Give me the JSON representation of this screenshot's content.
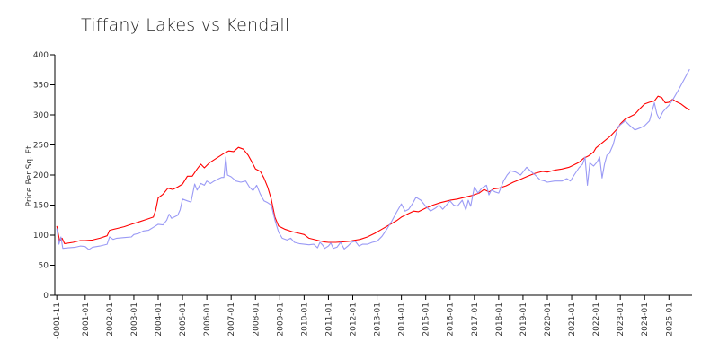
{
  "chart_data": {
    "type": "line",
    "title": "Tiffany Lakes vs Kendall",
    "xlabel": "",
    "ylabel": "Price Per Sq. Ft.",
    "ylim": [
      0,
      400
    ],
    "yticks": [
      0,
      50,
      100,
      150,
      200,
      250,
      300,
      350,
      400
    ],
    "xlim": [
      -0.25,
      25.95
    ],
    "xticks": [
      {
        "label": "-0001-11",
        "t": -0.17
      },
      {
        "label": "2001-01",
        "t": 1
      },
      {
        "label": "2002-01",
        "t": 2
      },
      {
        "label": "2003-01",
        "t": 3
      },
      {
        "label": "2004-01",
        "t": 4
      },
      {
        "label": "2005-01",
        "t": 5
      },
      {
        "label": "2006-01",
        "t": 6
      },
      {
        "label": "2007-01",
        "t": 7
      },
      {
        "label": "2008-01",
        "t": 8
      },
      {
        "label": "2009-01",
        "t": 9
      },
      {
        "label": "2010-01",
        "t": 10
      },
      {
        "label": "2011-01",
        "t": 11
      },
      {
        "label": "2012-01",
        "t": 12
      },
      {
        "label": "2013-01",
        "t": 13
      },
      {
        "label": "2014-01",
        "t": 14
      },
      {
        "label": "2015-01",
        "t": 15
      },
      {
        "label": "2016-01",
        "t": 16
      },
      {
        "label": "2017-01",
        "t": 17
      },
      {
        "label": "2018-01",
        "t": 18
      },
      {
        "label": "2019-01",
        "t": 19
      },
      {
        "label": "2020-01",
        "t": 20
      },
      {
        "label": "2021-01",
        "t": 21
      },
      {
        "label": "2022-01",
        "t": 22
      },
      {
        "label": "2023-01",
        "t": 23
      },
      {
        "label": "2024-01",
        "t": 24
      },
      {
        "label": "2025-01",
        "t": 25
      }
    ],
    "series": [
      {
        "name": "Kendall",
        "color": "#ff0000",
        "points": [
          [
            -0.17,
            115
          ],
          [
            -0.05,
            90
          ],
          [
            0.05,
            95
          ],
          [
            0.15,
            86
          ],
          [
            0.5,
            88
          ],
          [
            0.8,
            91
          ],
          [
            1.0,
            91
          ],
          [
            1.3,
            92
          ],
          [
            1.6,
            95
          ],
          [
            1.9,
            99
          ],
          [
            2.0,
            108
          ],
          [
            2.3,
            111
          ],
          [
            2.6,
            114
          ],
          [
            2.9,
            118
          ],
          [
            3.2,
            122
          ],
          [
            3.5,
            126
          ],
          [
            3.8,
            130
          ],
          [
            3.9,
            142
          ],
          [
            4.0,
            162
          ],
          [
            4.2,
            168
          ],
          [
            4.4,
            178
          ],
          [
            4.6,
            176
          ],
          [
            4.8,
            180
          ],
          [
            5.0,
            185
          ],
          [
            5.2,
            198
          ],
          [
            5.4,
            198
          ],
          [
            5.6,
            210
          ],
          [
            5.75,
            218
          ],
          [
            5.9,
            212
          ],
          [
            6.1,
            220
          ],
          [
            6.4,
            228
          ],
          [
            6.7,
            236
          ],
          [
            6.9,
            240
          ],
          [
            7.1,
            239
          ],
          [
            7.3,
            246
          ],
          [
            7.5,
            243
          ],
          [
            7.7,
            233
          ],
          [
            7.85,
            222
          ],
          [
            8.0,
            210
          ],
          [
            8.2,
            206
          ],
          [
            8.35,
            195
          ],
          [
            8.5,
            180
          ],
          [
            8.65,
            160
          ],
          [
            8.8,
            130
          ],
          [
            8.95,
            115
          ],
          [
            9.2,
            110
          ],
          [
            9.5,
            106
          ],
          [
            9.8,
            103
          ],
          [
            10.0,
            101
          ],
          [
            10.2,
            95
          ],
          [
            10.5,
            92
          ],
          [
            10.8,
            89
          ],
          [
            11.0,
            88
          ],
          [
            11.3,
            88
          ],
          [
            11.6,
            89
          ],
          [
            11.9,
            90
          ],
          [
            12.0,
            91
          ],
          [
            12.3,
            93
          ],
          [
            12.6,
            97
          ],
          [
            12.9,
            103
          ],
          [
            13.2,
            110
          ],
          [
            13.5,
            117
          ],
          [
            13.8,
            124
          ],
          [
            14.0,
            130
          ],
          [
            14.3,
            136
          ],
          [
            14.5,
            140
          ],
          [
            14.7,
            139
          ],
          [
            15.0,
            145
          ],
          [
            15.3,
            150
          ],
          [
            15.6,
            154
          ],
          [
            15.9,
            157
          ],
          [
            16.0,
            158
          ],
          [
            16.3,
            160
          ],
          [
            16.6,
            163
          ],
          [
            16.9,
            166
          ],
          [
            17.2,
            170
          ],
          [
            17.4,
            176
          ],
          [
            17.6,
            172
          ],
          [
            17.8,
            177
          ],
          [
            18.0,
            178
          ],
          [
            18.3,
            182
          ],
          [
            18.6,
            188
          ],
          [
            18.9,
            193
          ],
          [
            19.2,
            198
          ],
          [
            19.5,
            203
          ],
          [
            19.8,
            206
          ],
          [
            20.0,
            205
          ],
          [
            20.3,
            208
          ],
          [
            20.6,
            210
          ],
          [
            20.9,
            213
          ],
          [
            21.0,
            215
          ],
          [
            21.3,
            221
          ],
          [
            21.5,
            228
          ],
          [
            21.7,
            232
          ],
          [
            21.9,
            238
          ],
          [
            22.0,
            245
          ],
          [
            22.3,
            255
          ],
          [
            22.6,
            265
          ],
          [
            22.9,
            278
          ],
          [
            23.0,
            285
          ],
          [
            23.2,
            293
          ],
          [
            23.4,
            297
          ],
          [
            23.6,
            301
          ],
          [
            23.8,
            310
          ],
          [
            24.0,
            318
          ],
          [
            24.2,
            321
          ],
          [
            24.4,
            323
          ],
          [
            24.55,
            331
          ],
          [
            24.7,
            329
          ],
          [
            24.85,
            320
          ],
          [
            25.0,
            321
          ],
          [
            25.15,
            326
          ],
          [
            25.3,
            322
          ],
          [
            25.5,
            318
          ],
          [
            25.7,
            312
          ],
          [
            25.85,
            308
          ]
        ]
      },
      {
        "name": "Tiffany Lakes",
        "color": "#9a9af5",
        "points": [
          [
            -0.17,
            111
          ],
          [
            -0.08,
            85
          ],
          [
            0.0,
            97
          ],
          [
            0.08,
            78
          ],
          [
            0.3,
            79
          ],
          [
            0.6,
            80
          ],
          [
            0.8,
            82
          ],
          [
            1.0,
            81
          ],
          [
            1.15,
            76
          ],
          [
            1.3,
            80
          ],
          [
            1.6,
            82
          ],
          [
            1.9,
            85
          ],
          [
            2.0,
            97
          ],
          [
            2.15,
            93
          ],
          [
            2.3,
            95
          ],
          [
            2.6,
            96
          ],
          [
            2.9,
            97
          ],
          [
            3.0,
            101
          ],
          [
            3.2,
            103
          ],
          [
            3.4,
            107
          ],
          [
            3.6,
            108
          ],
          [
            3.8,
            113
          ],
          [
            4.0,
            118
          ],
          [
            4.2,
            117
          ],
          [
            4.35,
            125
          ],
          [
            4.45,
            135
          ],
          [
            4.55,
            128
          ],
          [
            4.8,
            133
          ],
          [
            4.9,
            142
          ],
          [
            5.0,
            160
          ],
          [
            5.2,
            157
          ],
          [
            5.35,
            155
          ],
          [
            5.5,
            185
          ],
          [
            5.6,
            175
          ],
          [
            5.75,
            186
          ],
          [
            5.9,
            183
          ],
          [
            6.0,
            190
          ],
          [
            6.15,
            186
          ],
          [
            6.3,
            190
          ],
          [
            6.5,
            194
          ],
          [
            6.6,
            196
          ],
          [
            6.7,
            196
          ],
          [
            6.78,
            230
          ],
          [
            6.85,
            200
          ],
          [
            7.0,
            197
          ],
          [
            7.2,
            190
          ],
          [
            7.4,
            188
          ],
          [
            7.6,
            190
          ],
          [
            7.75,
            180
          ],
          [
            7.9,
            174
          ],
          [
            8.05,
            183
          ],
          [
            8.2,
            168
          ],
          [
            8.35,
            157
          ],
          [
            8.5,
            154
          ],
          [
            8.65,
            150
          ],
          [
            8.8,
            125
          ],
          [
            8.95,
            105
          ],
          [
            9.1,
            95
          ],
          [
            9.3,
            92
          ],
          [
            9.45,
            95
          ],
          [
            9.6,
            88
          ],
          [
            9.8,
            86
          ],
          [
            10.0,
            85
          ],
          [
            10.2,
            84
          ],
          [
            10.4,
            85
          ],
          [
            10.55,
            79
          ],
          [
            10.65,
            88
          ],
          [
            10.75,
            84
          ],
          [
            10.85,
            78
          ],
          [
            11.0,
            82
          ],
          [
            11.1,
            87
          ],
          [
            11.2,
            78
          ],
          [
            11.35,
            80
          ],
          [
            11.5,
            88
          ],
          [
            11.65,
            77
          ],
          [
            11.8,
            82
          ],
          [
            11.95,
            88
          ],
          [
            12.1,
            90
          ],
          [
            12.25,
            82
          ],
          [
            12.4,
            85
          ],
          [
            12.6,
            85
          ],
          [
            12.8,
            88
          ],
          [
            13.0,
            90
          ],
          [
            13.2,
            98
          ],
          [
            13.4,
            110
          ],
          [
            13.6,
            123
          ],
          [
            13.8,
            138
          ],
          [
            14.0,
            152
          ],
          [
            14.15,
            140
          ],
          [
            14.3,
            143
          ],
          [
            14.45,
            152
          ],
          [
            14.6,
            163
          ],
          [
            14.8,
            158
          ],
          [
            15.0,
            148
          ],
          [
            15.2,
            140
          ],
          [
            15.4,
            145
          ],
          [
            15.55,
            150
          ],
          [
            15.7,
            143
          ],
          [
            15.85,
            150
          ],
          [
            16.0,
            157
          ],
          [
            16.15,
            150
          ],
          [
            16.3,
            148
          ],
          [
            16.5,
            158
          ],
          [
            16.65,
            142
          ],
          [
            16.75,
            158
          ],
          [
            16.85,
            148
          ],
          [
            17.0,
            180
          ],
          [
            17.15,
            170
          ],
          [
            17.3,
            178
          ],
          [
            17.5,
            183
          ],
          [
            17.6,
            167
          ],
          [
            17.7,
            175
          ],
          [
            17.85,
            172
          ],
          [
            18.0,
            170
          ],
          [
            18.2,
            190
          ],
          [
            18.35,
            200
          ],
          [
            18.5,
            207
          ],
          [
            18.7,
            205
          ],
          [
            18.9,
            200
          ],
          [
            19.0,
            205
          ],
          [
            19.15,
            213
          ],
          [
            19.3,
            207
          ],
          [
            19.5,
            200
          ],
          [
            19.7,
            192
          ],
          [
            19.9,
            190
          ],
          [
            20.0,
            188
          ],
          [
            20.3,
            190
          ],
          [
            20.6,
            190
          ],
          [
            20.8,
            194
          ],
          [
            20.95,
            190
          ],
          [
            21.1,
            200
          ],
          [
            21.3,
            212
          ],
          [
            21.45,
            218
          ],
          [
            21.55,
            230
          ],
          [
            21.65,
            183
          ],
          [
            21.75,
            220
          ],
          [
            21.9,
            215
          ],
          [
            22.05,
            222
          ],
          [
            22.15,
            230
          ],
          [
            22.25,
            195
          ],
          [
            22.35,
            218
          ],
          [
            22.45,
            233
          ],
          [
            22.55,
            236
          ],
          [
            22.7,
            250
          ],
          [
            22.9,
            280
          ],
          [
            23.05,
            285
          ],
          [
            23.2,
            290
          ],
          [
            23.4,
            282
          ],
          [
            23.6,
            275
          ],
          [
            23.8,
            278
          ],
          [
            24.0,
            282
          ],
          [
            24.2,
            290
          ],
          [
            24.3,
            305
          ],
          [
            24.4,
            320
          ],
          [
            24.5,
            302
          ],
          [
            24.6,
            293
          ],
          [
            24.75,
            305
          ],
          [
            24.9,
            312
          ],
          [
            25.0,
            316
          ],
          [
            25.2,
            328
          ],
          [
            25.4,
            342
          ],
          [
            25.6,
            357
          ],
          [
            25.85,
            376
          ]
        ]
      }
    ]
  }
}
